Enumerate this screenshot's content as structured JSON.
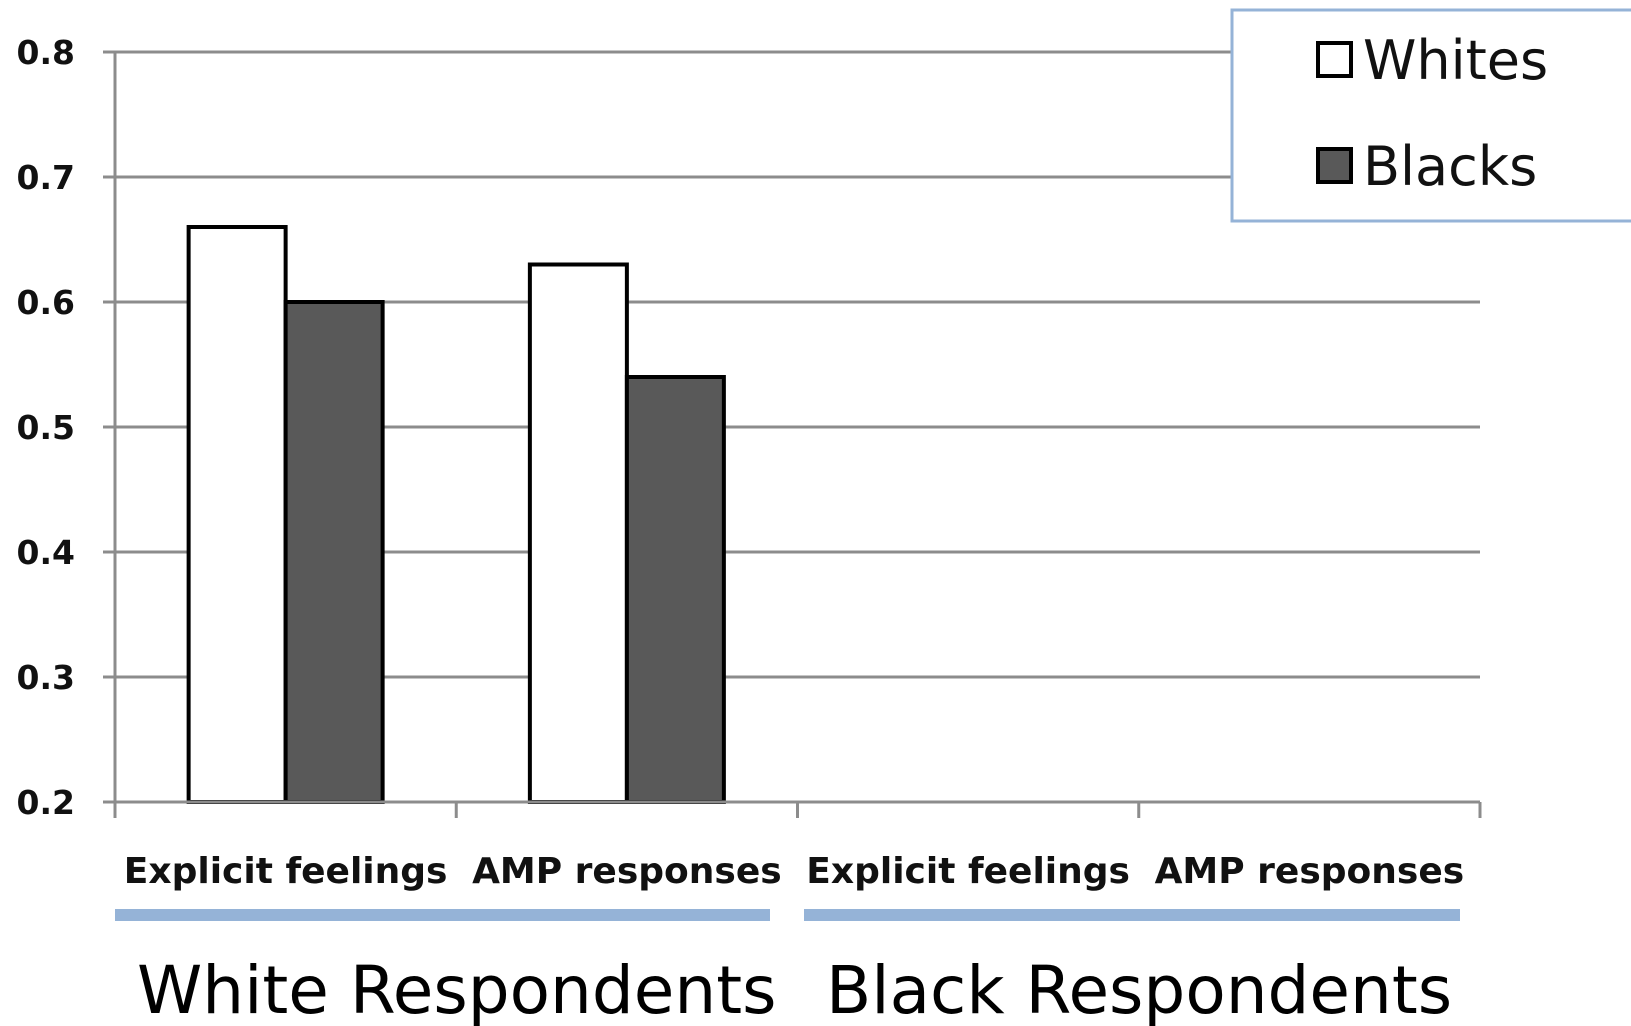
{
  "chart_data": {
    "type": "bar",
    "title": "",
    "xlabel": "",
    "ylabel": "",
    "ylim": [
      0.2,
      0.8
    ],
    "yticks": [
      0.2,
      0.3,
      0.4,
      0.5,
      0.6,
      0.7,
      0.8
    ],
    "ytick_labels": [
      "0.2",
      "0.3",
      "0.4",
      "0.5",
      "0.6",
      "0.7",
      "0.8"
    ],
    "grid": true,
    "legend_position": "top-right",
    "categories": [
      "Explicit feelings",
      "AMP responses",
      "Explicit feelings",
      "AMP responses"
    ],
    "groups": [
      {
        "label": "White Respondents",
        "categories": [
          "Explicit feelings",
          "AMP responses"
        ]
      },
      {
        "label": "Black Respondents",
        "categories": [
          "Explicit feelings",
          "AMP responses"
        ]
      }
    ],
    "series": [
      {
        "name": "Whites",
        "color": "#ffffff",
        "values": [
          0.66,
          0.63,
          null,
          null
        ]
      },
      {
        "name": "Blacks",
        "color": "#595959",
        "values": [
          0.6,
          0.54,
          null,
          null
        ]
      }
    ],
    "colors": {
      "gridline": "#8c8c8c",
      "bar_outline": "#000000",
      "group_underline": "#95b3d7",
      "legend_border": "#95b3d7"
    }
  }
}
